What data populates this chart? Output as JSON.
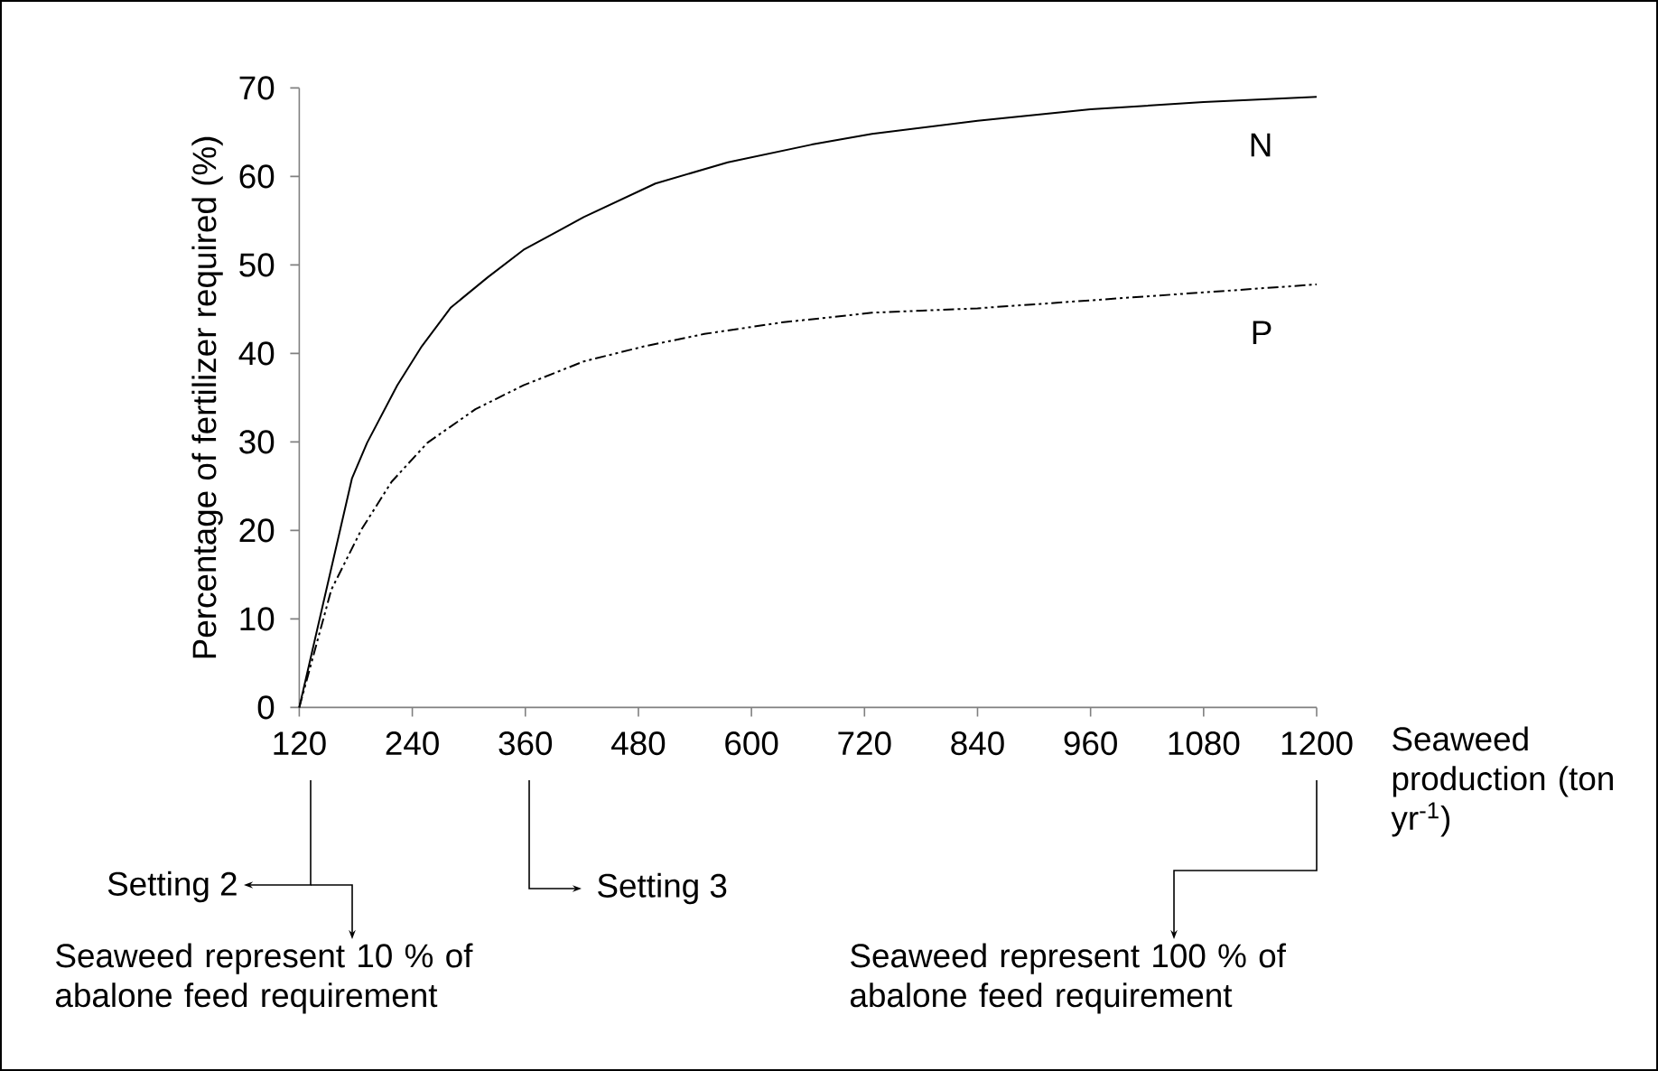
{
  "chart_data": {
    "type": "line",
    "ylabel": "Percentage of fertilizer required (%)",
    "xlabel": "Seaweed production (ton yr$^{-1}$)",
    "xlim": [
      120,
      1200
    ],
    "ylim": [
      0,
      70
    ],
    "xticks": [
      120,
      240,
      360,
      480,
      600,
      720,
      840,
      960,
      1080,
      1200
    ],
    "yticks": [
      0,
      10,
      20,
      30,
      40,
      50,
      60,
      70
    ],
    "series": [
      {
        "name": "N",
        "color": "#000000",
        "line_style": "solid",
        "x": [
          120,
          176,
          192,
          224,
          250,
          281,
          320,
          358,
          422,
          498,
          575,
          664,
          728,
          840,
          960,
          1080,
          1200
        ],
        "values": [
          0,
          25.9,
          29.9,
          36.4,
          40.8,
          45.2,
          48.6,
          51.7,
          55.4,
          59.2,
          61.6,
          63.6,
          64.8,
          66.3,
          67.6,
          68.4,
          69
        ]
      },
      {
        "name": "P",
        "color": "#000000",
        "line_style": "dashed",
        "x": [
          120,
          154,
          186,
          218,
          256,
          307,
          358,
          422,
          486,
          550,
          632,
          728,
          840,
          960,
          1080,
          1200
        ],
        "values": [
          0,
          13.3,
          20.1,
          25.5,
          29.9,
          33.7,
          36.4,
          39.1,
          40.8,
          42.2,
          43.5,
          44.6,
          45.1,
          46.0,
          46.9,
          47.8
        ]
      }
    ],
    "annotations": [
      "Setting 2",
      "Setting 3",
      "Seaweed represent 10 % of abalone feed requirement",
      "Seaweed represent 100 % of abalone feed requirement"
    ]
  }
}
